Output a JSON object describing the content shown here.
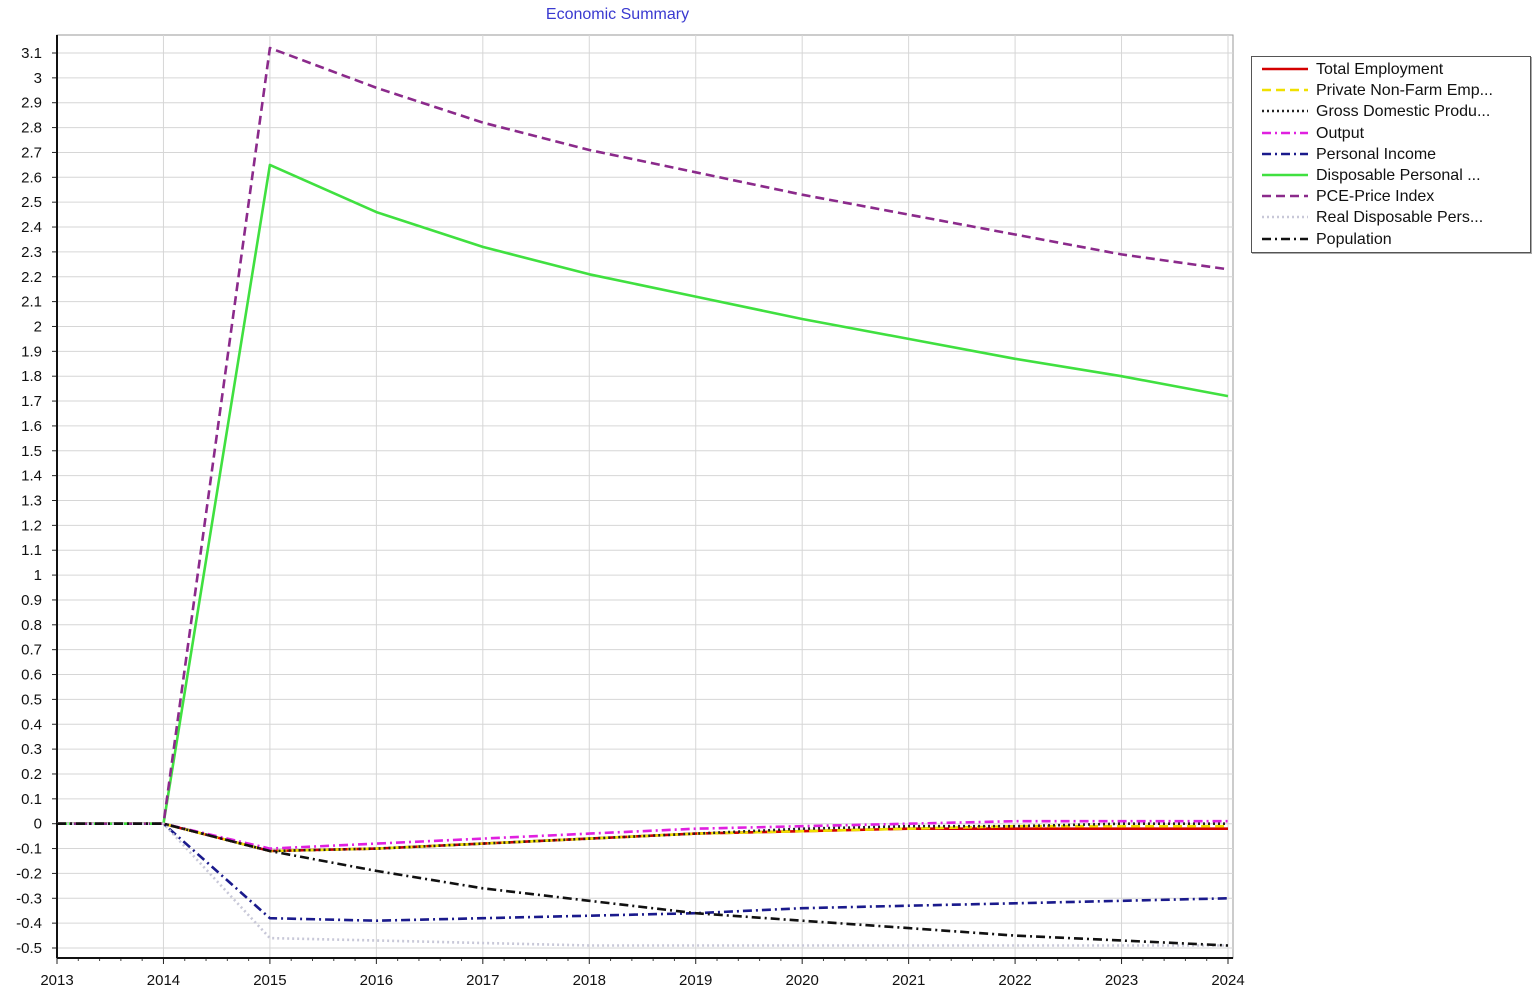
{
  "chart_data": {
    "type": "line",
    "title": "Economic Summary",
    "xlabel": "",
    "ylabel": "",
    "x": [
      2013,
      2014,
      2015,
      2016,
      2017,
      2018,
      2019,
      2020,
      2021,
      2022,
      2023,
      2024
    ],
    "xlim": [
      2013,
      2024
    ],
    "ylim": [
      -0.5,
      3.1
    ],
    "y_ticks": [
      3.1,
      3,
      2.9,
      2.8,
      2.7,
      2.6,
      2.5,
      2.4,
      2.3,
      2.2,
      2.1,
      2,
      1.9,
      1.8,
      1.7,
      1.6,
      1.5,
      1.4,
      1.3,
      1.2,
      1.1,
      1,
      0.9,
      0.8,
      0.7,
      0.6,
      0.5,
      0.4,
      0.3,
      0.2,
      0.1,
      0,
      -0.1,
      -0.2,
      -0.3,
      -0.4,
      -0.5
    ],
    "x_ticks": [
      "2013",
      "2014",
      "2015",
      "2016",
      "2017",
      "2018",
      "2019",
      "2020",
      "2021",
      "2022",
      "2023",
      "2024"
    ],
    "grid": true,
    "legend_position": "top-right, outside plot",
    "series": [
      {
        "name": "Total Employment",
        "color": "#d40000",
        "dash": "solid",
        "values": [
          0,
          0,
          -0.11,
          -0.1,
          -0.08,
          -0.06,
          -0.04,
          -0.03,
          -0.02,
          -0.02,
          -0.02,
          -0.02
        ]
      },
      {
        "name": "Private Non-Farm Emp...",
        "color": "#f0e000",
        "dash": "dash",
        "values": [
          0,
          0,
          -0.11,
          -0.1,
          -0.08,
          -0.06,
          -0.04,
          -0.03,
          -0.02,
          -0.01,
          -0.01,
          -0.01
        ]
      },
      {
        "name": "Gross Domestic Produ...",
        "color": "#222222",
        "dash": "dot",
        "values": [
          0,
          0,
          -0.11,
          -0.1,
          -0.08,
          -0.06,
          -0.04,
          -0.02,
          -0.01,
          -0.01,
          0,
          0
        ]
      },
      {
        "name": "Output",
        "color": "#e020e0",
        "dash": "dashdot",
        "values": [
          0,
          0,
          -0.1,
          -0.08,
          -0.06,
          -0.04,
          -0.02,
          -0.01,
          0,
          0.01,
          0.01,
          0.01
        ]
      },
      {
        "name": "Personal Income",
        "color": "#1a1a8c",
        "dash": "dashdot",
        "values": [
          0,
          0,
          -0.38,
          -0.39,
          -0.38,
          -0.37,
          -0.36,
          -0.34,
          -0.33,
          -0.32,
          -0.31,
          -0.3
        ]
      },
      {
        "name": "Disposable Personal ...",
        "color": "#40e040",
        "dash": "solid",
        "values": [
          0,
          0,
          2.65,
          2.46,
          2.32,
          2.21,
          2.12,
          2.03,
          1.95,
          1.87,
          1.8,
          1.72
        ]
      },
      {
        "name": "PCE-Price Index",
        "color": "#8b2a8b",
        "dash": "dash",
        "values": [
          0,
          0,
          3.12,
          2.96,
          2.82,
          2.71,
          2.62,
          2.53,
          2.45,
          2.37,
          2.29,
          2.23
        ]
      },
      {
        "name": "Real Disposable Pers...",
        "color": "#c8c8d8",
        "dash": "dot",
        "values": [
          0,
          0,
          -0.46,
          -0.47,
          -0.48,
          -0.49,
          -0.49,
          -0.49,
          -0.49,
          -0.49,
          -0.49,
          -0.49
        ]
      },
      {
        "name": "Population",
        "color": "#111111",
        "dash": "dashdot",
        "values": [
          0,
          0,
          -0.11,
          -0.19,
          -0.26,
          -0.31,
          -0.36,
          -0.39,
          -0.42,
          -0.45,
          -0.47,
          -0.49
        ]
      }
    ]
  }
}
